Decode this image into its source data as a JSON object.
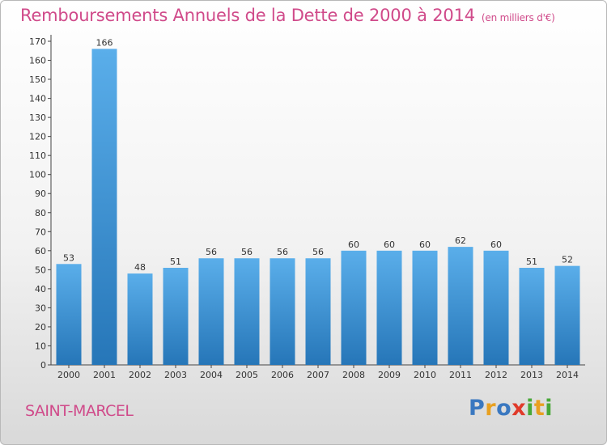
{
  "header": {
    "title": "Remboursements Annuels de la Dette de 2000 à 2014",
    "subtitle": "(en milliers d'€)"
  },
  "footer": {
    "commune": "SAINT-MARCEL",
    "logo": "Proxiti"
  },
  "colors": {
    "title": "#d04a8a",
    "bar_top": "#5aaeea",
    "bar_bottom": "#2676b8",
    "logo_letters": [
      "#3a78c0",
      "#e8a020",
      "#3a78c0",
      "#e03a2a",
      "#48a838",
      "#e8a020",
      "#48a838"
    ]
  },
  "chart_data": {
    "type": "bar",
    "title": "Remboursements Annuels de la Dette de 2000 à 2014",
    "subtitle": "(en milliers d'€)",
    "categories": [
      "2000",
      "2001",
      "2002",
      "2003",
      "2004",
      "2005",
      "2006",
      "2007",
      "2008",
      "2009",
      "2010",
      "2011",
      "2012",
      "2013",
      "2014"
    ],
    "values": [
      53,
      166,
      48,
      51,
      56,
      56,
      56,
      56,
      60,
      60,
      60,
      62,
      60,
      51,
      52
    ],
    "xlabel": "",
    "ylabel": "",
    "ylim": [
      0,
      170
    ],
    "yticks": [
      0,
      10,
      20,
      30,
      40,
      50,
      60,
      70,
      80,
      90,
      100,
      110,
      120,
      130,
      140,
      150,
      160,
      170
    ],
    "grid": false,
    "data_labels": true
  }
}
